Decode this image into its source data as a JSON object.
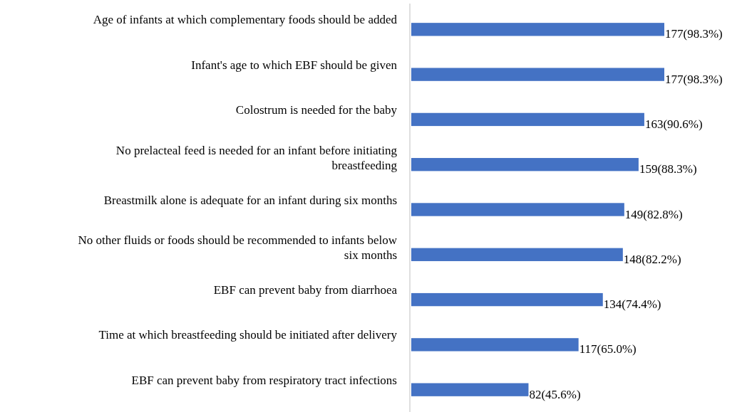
{
  "chart_data": {
    "type": "bar",
    "orientation": "horizontal",
    "categories": [
      "Age of infants at which complementary foods should be added",
      "Infant's age to which EBF should be given",
      "Colostrum is needed for the baby",
      "No prelacteal feed is needed for an infant before initiating breastfeeding",
      "Breastmilk alone is adequate for an infant during six months",
      "No other fluids or foods should be recommended to infants below six months",
      "EBF can prevent baby from diarrhoea",
      "Time at which breastfeeding should be initiated after delivery",
      "EBF can prevent baby from respiratory tract infections"
    ],
    "values": [
      177,
      177,
      163,
      159,
      149,
      148,
      134,
      117,
      82
    ],
    "value_labels": [
      "177(98.3%)",
      "177(98.3%)",
      "163(90.6%)",
      "159(88.3%)",
      "149(82.8%)",
      "148(82.2%)",
      "134(74.4%)",
      "117(65.0%)",
      "82(45.6%)"
    ],
    "color": "#4472c4"
  }
}
